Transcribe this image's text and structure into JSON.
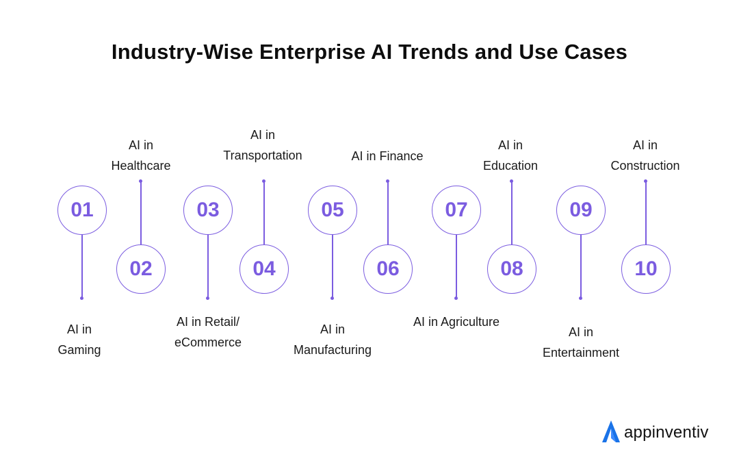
{
  "title": "Industry-Wise Enterprise AI Trends and Use Cases",
  "accent_color": "#7b5ce0",
  "items": [
    {
      "number": "01",
      "line1": "AI in",
      "line2": "Gaming"
    },
    {
      "number": "02",
      "line1": "AI in",
      "line2": "Healthcare"
    },
    {
      "number": "03",
      "line1": "AI in Retail/",
      "line2": "eCommerce"
    },
    {
      "number": "04",
      "line1": "AI in",
      "line2": "Transportation"
    },
    {
      "number": "05",
      "line1": "AI in",
      "line2": "Manufacturing"
    },
    {
      "number": "06",
      "line1": "AI in Finance",
      "line2": ""
    },
    {
      "number": "07",
      "line1": "AI in Agriculture",
      "line2": ""
    },
    {
      "number": "08",
      "line1": "AI in",
      "line2": "Education"
    },
    {
      "number": "09",
      "line1": "AI in",
      "line2": "Entertainment"
    },
    {
      "number": "10",
      "line1": "AI in",
      "line2": "Construction"
    }
  ],
  "logo": {
    "text": "appinventiv",
    "icon": "appinventiv-logo-icon"
  }
}
